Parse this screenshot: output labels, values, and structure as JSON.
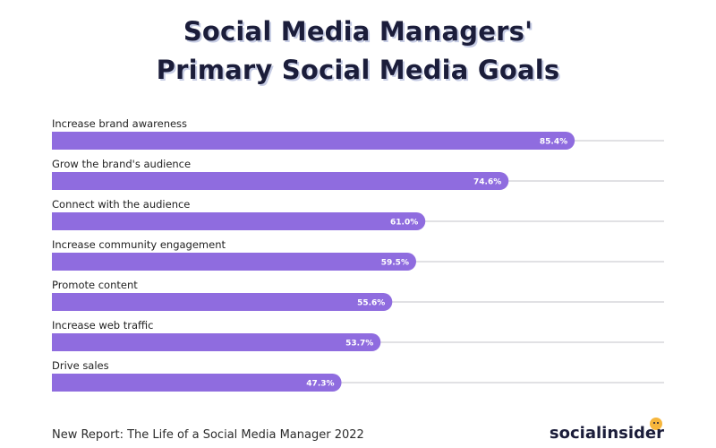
{
  "title": {
    "line1": "Social Media Managers'",
    "line2": "Primary Social Media Goals"
  },
  "chart_data": {
    "type": "bar",
    "orientation": "horizontal",
    "title": "Social Media Managers' Primary Social Media Goals",
    "categories": [
      "Increase brand awareness",
      "Grow the brand's audience",
      "Connect with the audience",
      "Increase community engagement",
      "Promote content",
      "Increase web traffic",
      "Drive sales"
    ],
    "values": [
      85.4,
      74.6,
      61.0,
      59.5,
      55.6,
      53.7,
      47.3
    ],
    "value_labels": [
      "85.4%",
      "74.6%",
      "61.0%",
      "59.5%",
      "55.6%",
      "53.7%",
      "47.3%"
    ],
    "xlim": [
      0,
      100
    ],
    "unit": "%",
    "xlabel": "",
    "ylabel": "",
    "grid": false,
    "legend": "none"
  },
  "colors": {
    "bar": "#8f6cdf",
    "track": "#d7d7db",
    "title": "#1b1d3a",
    "title_shadow": "#c6cce4",
    "label": "#222222",
    "value_label": "#ffffff",
    "brand_dot": "#f6b63c"
  },
  "footer": {
    "note": "New Report: The Life of a Social Media Manager 2022",
    "brand": "socialinsider"
  }
}
